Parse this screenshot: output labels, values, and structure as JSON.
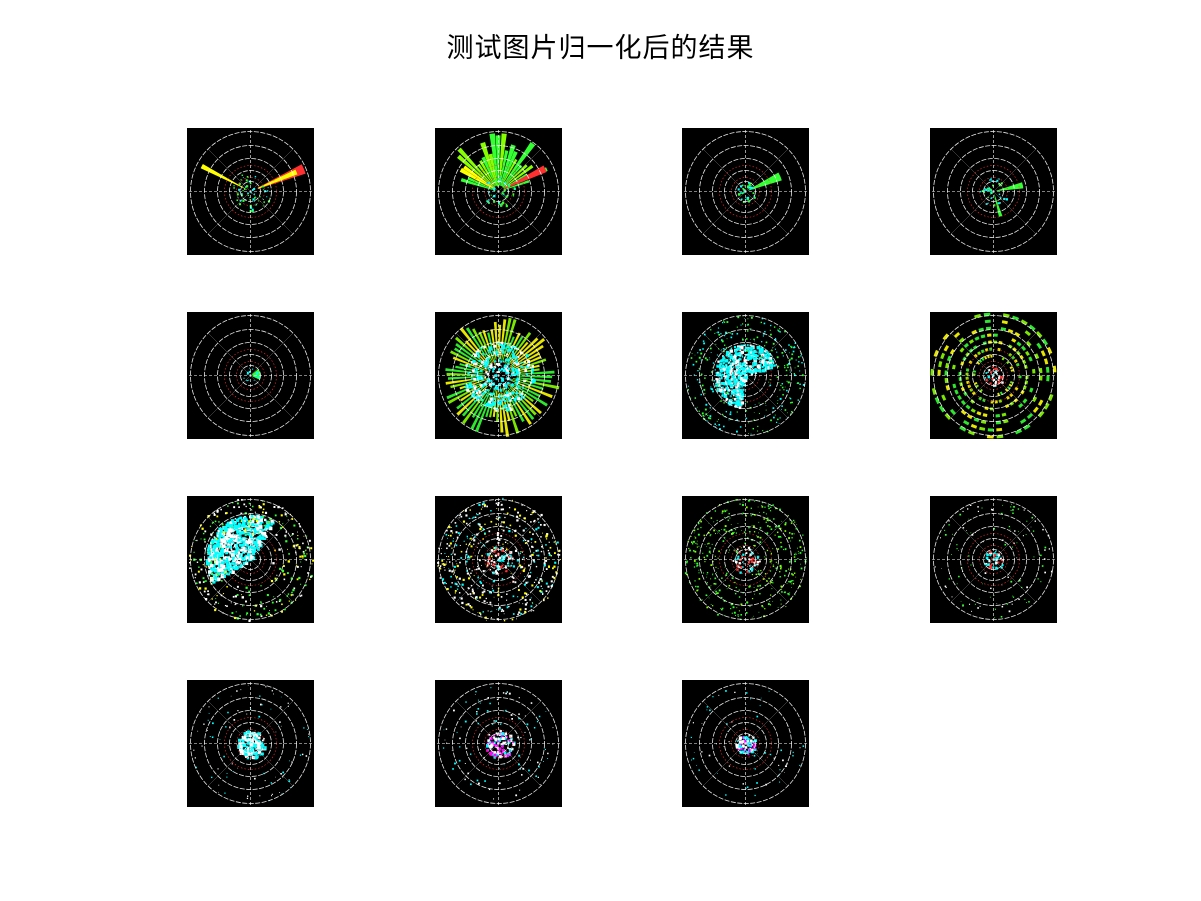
{
  "figure": {
    "title": "测试图片归一化后的结果"
  },
  "panels": [
    {
      "id": 1,
      "row": 1,
      "col": 1,
      "style": "sparse-beams",
      "colors": [
        "#ffff00",
        "#ff3030",
        "#33ff33"
      ]
    },
    {
      "id": 2,
      "row": 1,
      "col": 2,
      "style": "upper-fan",
      "colors": [
        "#ffff00",
        "#88ff00",
        "#33ff33",
        "#ff3030"
      ]
    },
    {
      "id": 3,
      "row": 1,
      "col": 3,
      "style": "single-beam",
      "colors": [
        "#33ff33",
        "#00ffff"
      ]
    },
    {
      "id": 4,
      "row": 1,
      "col": 4,
      "style": "twin-beam",
      "colors": [
        "#33ff33",
        "#00ffff"
      ]
    },
    {
      "id": 5,
      "row": 2,
      "col": 1,
      "style": "center-blip",
      "colors": [
        "#33ff33",
        "#00ffff"
      ]
    },
    {
      "id": 6,
      "row": 2,
      "col": 2,
      "style": "full-green-cyan",
      "colors": [
        "#33ff33",
        "#88ff00",
        "#ffff00",
        "#00ffff",
        "#ffffff"
      ]
    },
    {
      "id": 7,
      "row": 2,
      "col": 3,
      "style": "cyan-cluster",
      "colors": [
        "#00ffff",
        "#33ff33",
        "#ffffff"
      ]
    },
    {
      "id": 8,
      "row": 2,
      "col": 4,
      "style": "yellow-rings",
      "colors": [
        "#ffff00",
        "#88ff00",
        "#33ff33",
        "#ff3030"
      ]
    },
    {
      "id": 9,
      "row": 3,
      "col": 1,
      "style": "cyan-mass",
      "colors": [
        "#00ffff",
        "#ffffff",
        "#ffff00",
        "#33ff33"
      ]
    },
    {
      "id": 10,
      "row": 3,
      "col": 2,
      "style": "white-scatter",
      "colors": [
        "#ffffff",
        "#00ffff",
        "#ffff00",
        "#ff3030"
      ]
    },
    {
      "id": 11,
      "row": 3,
      "col": 3,
      "style": "green-scatter",
      "colors": [
        "#33ff33",
        "#ff3030",
        "#00ffff"
      ]
    },
    {
      "id": 12,
      "row": 3,
      "col": 4,
      "style": "sparse-center",
      "colors": [
        "#33ff33",
        "#ff3030",
        "#ffffff"
      ]
    },
    {
      "id": 13,
      "row": 4,
      "col": 1,
      "style": "cyan-core",
      "colors": [
        "#00ffff",
        "#ffffff"
      ]
    },
    {
      "id": 14,
      "row": 4,
      "col": 2,
      "style": "white-core",
      "colors": [
        "#ffffff",
        "#00ffff",
        "#ff00ff"
      ]
    },
    {
      "id": 15,
      "row": 4,
      "col": 3,
      "style": "small-core",
      "colors": [
        "#ffffff",
        "#00ffff",
        "#ff00ff"
      ]
    }
  ]
}
